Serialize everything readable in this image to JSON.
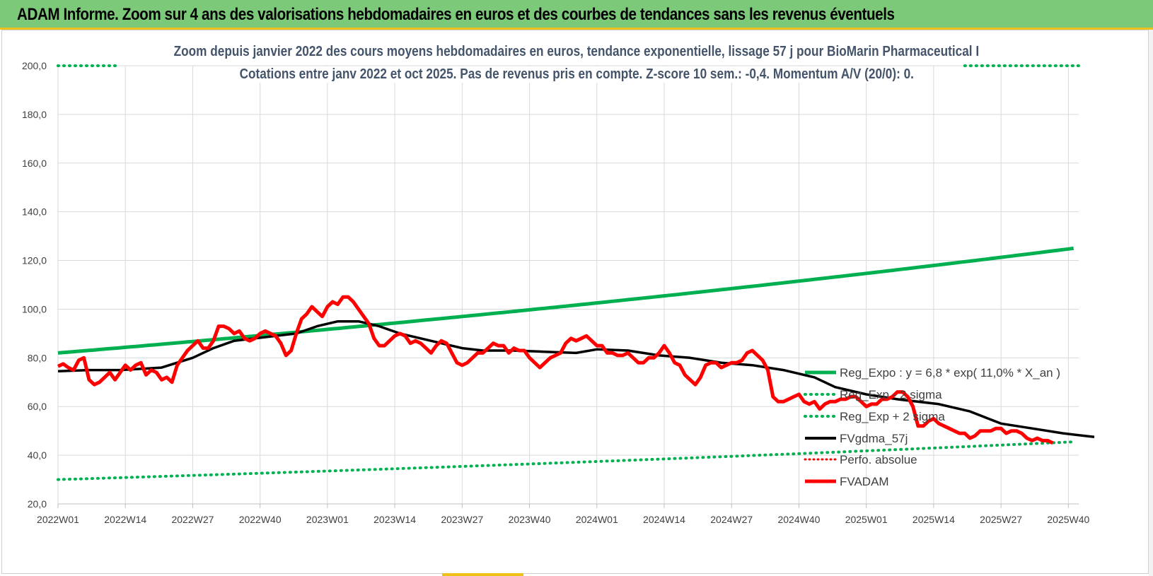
{
  "header": {
    "title": "ADAM Informe. Zoom sur 4 ans des valorisations hebdomadaires en euros et des courbes de tendances sans les revenus éventuels"
  },
  "chart_data": {
    "type": "line",
    "title_line1": "Zoom depuis janvier 2022 des cours moyens hebdomadaires en euros, tendance exponentielle, lissage 57 j pour BioMarin Pharmaceutical I",
    "title_line2": "Cotations entre janv 2022 et oct 2025. Pas de revenus pris en compte. Z-score 10 sem.: -0,4.  Momentum A/V (20/0): 0.",
    "ylim": [
      20,
      200
    ],
    "y_ticks": [
      20,
      40,
      60,
      80,
      100,
      120,
      140,
      160,
      180,
      200
    ],
    "y_tick_labels": [
      "20,0",
      "40,0",
      "60,0",
      "80,0",
      "100,0",
      "120,0",
      "140,0",
      "160,0",
      "180,0",
      "200,0"
    ],
    "n_weeks": 197,
    "x_ticks": [
      0,
      13,
      26,
      39,
      52,
      65,
      78,
      91,
      104,
      117,
      130,
      143,
      156,
      169,
      182,
      195
    ],
    "x_tick_labels": [
      "2022W01",
      "2022W14",
      "2022W27",
      "2022W40",
      "2023W01",
      "2023W14",
      "2023W27",
      "2023W40",
      "2024W01",
      "2024W14",
      "2024W27",
      "2024W40",
      "2025W01",
      "2025W14",
      "2025W27",
      "2025W40"
    ],
    "grid": true,
    "legend_position": "right",
    "series": [
      {
        "name": "Reg_Expo : y = 6,8 * exp( 11,0% * X_an )",
        "color": "#00b050",
        "style": "solid",
        "start": 82.0,
        "end": 125.0
      },
      {
        "name": "Reg_Exp - 2 sigma",
        "color": "#00b050",
        "style": "dotted",
        "start": 30.0,
        "end": 45.5
      },
      {
        "name": "Reg_Exp + 2 sigma",
        "color": "#00b050",
        "style": "dotted",
        "note": "above plotted range except first and last weeks",
        "start": 200.0,
        "end": 200.0
      },
      {
        "name": "FVgdma_57j",
        "color": "#000000",
        "style": "solid",
        "points": [
          [
            0,
            74.5
          ],
          [
            6,
            75
          ],
          [
            12,
            75
          ],
          [
            20,
            76
          ],
          [
            26,
            80
          ],
          [
            30,
            84
          ],
          [
            34,
            87
          ],
          [
            38,
            88
          ],
          [
            42,
            89
          ],
          [
            46,
            90
          ],
          [
            50,
            93
          ],
          [
            54,
            95
          ],
          [
            58,
            95
          ],
          [
            62,
            93
          ],
          [
            66,
            90
          ],
          [
            70,
            88
          ],
          [
            74,
            86
          ],
          [
            78,
            84
          ],
          [
            82,
            83
          ],
          [
            88,
            83
          ],
          [
            94,
            82.5
          ],
          [
            100,
            82
          ],
          [
            104,
            83.5
          ],
          [
            110,
            83
          ],
          [
            116,
            81
          ],
          [
            122,
            80
          ],
          [
            128,
            78
          ],
          [
            134,
            77
          ],
          [
            140,
            75
          ],
          [
            146,
            72
          ],
          [
            150,
            68
          ],
          [
            156,
            65
          ],
          [
            162,
            63
          ],
          [
            170,
            61
          ],
          [
            176,
            58
          ],
          [
            182,
            53
          ],
          [
            188,
            51
          ],
          [
            194,
            49
          ],
          [
            200,
            47.5
          ]
        ]
      },
      {
        "name": "Perfo. absolue",
        "color": "#ff0000",
        "style": "dotted",
        "note": "not visible in plotted range"
      },
      {
        "name": "FVADAM",
        "color": "#ff0000",
        "style": "solid",
        "points": [
          [
            0,
            76.5
          ],
          [
            1,
            77.5
          ],
          [
            2,
            76
          ],
          [
            3,
            75
          ],
          [
            4,
            79
          ],
          [
            5,
            80
          ],
          [
            6,
            71
          ],
          [
            7,
            69
          ],
          [
            8,
            70
          ],
          [
            9,
            72
          ],
          [
            10,
            74
          ],
          [
            11,
            71
          ],
          [
            12,
            74
          ],
          [
            13,
            77
          ],
          [
            14,
            75
          ],
          [
            15,
            77
          ],
          [
            16,
            78
          ],
          [
            17,
            73
          ],
          [
            18,
            75
          ],
          [
            19,
            74
          ],
          [
            20,
            71
          ],
          [
            21,
            72
          ],
          [
            22,
            70
          ],
          [
            23,
            77
          ],
          [
            24,
            80
          ],
          [
            25,
            83
          ],
          [
            26,
            85
          ],
          [
            27,
            87
          ],
          [
            28,
            84
          ],
          [
            29,
            84
          ],
          [
            30,
            87
          ],
          [
            31,
            93
          ],
          [
            32,
            93
          ],
          [
            33,
            92
          ],
          [
            34,
            90
          ],
          [
            35,
            91
          ],
          [
            36,
            88
          ],
          [
            37,
            87
          ],
          [
            38,
            88
          ],
          [
            39,
            90
          ],
          [
            40,
            91
          ],
          [
            41,
            90
          ],
          [
            42,
            89
          ],
          [
            43,
            86
          ],
          [
            44,
            81
          ],
          [
            45,
            83
          ],
          [
            46,
            90
          ],
          [
            47,
            96
          ],
          [
            48,
            98
          ],
          [
            49,
            101
          ],
          [
            50,
            99
          ],
          [
            51,
            97
          ],
          [
            52,
            101
          ],
          [
            53,
            103
          ],
          [
            54,
            102
          ],
          [
            55,
            105
          ],
          [
            56,
            105
          ],
          [
            57,
            103
          ],
          [
            58,
            100
          ],
          [
            59,
            97
          ],
          [
            60,
            94
          ],
          [
            61,
            88
          ],
          [
            62,
            85
          ],
          [
            63,
            85
          ],
          [
            64,
            87
          ],
          [
            65,
            89
          ],
          [
            66,
            90
          ],
          [
            67,
            89
          ],
          [
            68,
            86
          ],
          [
            69,
            87
          ],
          [
            70,
            86
          ],
          [
            71,
            84
          ],
          [
            72,
            82
          ],
          [
            73,
            85
          ],
          [
            74,
            87
          ],
          [
            75,
            86
          ],
          [
            76,
            82
          ],
          [
            77,
            78
          ],
          [
            78,
            77
          ],
          [
            79,
            78
          ],
          [
            80,
            80
          ],
          [
            81,
            82
          ],
          [
            82,
            82
          ],
          [
            83,
            84
          ],
          [
            84,
            86
          ],
          [
            85,
            85
          ],
          [
            86,
            85
          ],
          [
            87,
            82
          ],
          [
            88,
            84
          ],
          [
            89,
            83
          ],
          [
            90,
            83
          ],
          [
            91,
            80
          ],
          [
            92,
            78
          ],
          [
            93,
            76
          ],
          [
            94,
            78
          ],
          [
            95,
            80
          ],
          [
            96,
            81
          ],
          [
            97,
            82
          ],
          [
            98,
            86
          ],
          [
            99,
            88
          ],
          [
            100,
            87
          ],
          [
            101,
            88
          ],
          [
            102,
            89
          ],
          [
            103,
            87
          ],
          [
            104,
            85
          ],
          [
            105,
            85
          ],
          [
            106,
            82
          ],
          [
            107,
            82
          ],
          [
            108,
            81
          ],
          [
            109,
            81
          ],
          [
            110,
            82
          ],
          [
            111,
            80
          ],
          [
            112,
            78
          ],
          [
            113,
            78
          ],
          [
            114,
            80
          ],
          [
            115,
            80
          ],
          [
            116,
            82
          ],
          [
            117,
            85
          ],
          [
            118,
            82
          ],
          [
            119,
            78
          ],
          [
            120,
            77
          ],
          [
            121,
            73
          ],
          [
            122,
            71
          ],
          [
            123,
            69
          ],
          [
            124,
            72
          ],
          [
            125,
            77
          ],
          [
            126,
            78
          ],
          [
            127,
            78
          ],
          [
            128,
            76
          ],
          [
            129,
            77
          ],
          [
            130,
            78
          ],
          [
            131,
            78
          ],
          [
            132,
            79
          ],
          [
            133,
            82
          ],
          [
            134,
            83
          ],
          [
            135,
            81
          ],
          [
            136,
            79
          ],
          [
            137,
            75
          ],
          [
            138,
            64
          ],
          [
            139,
            62
          ],
          [
            140,
            62
          ],
          [
            141,
            63
          ],
          [
            142,
            64
          ],
          [
            143,
            65
          ],
          [
            144,
            62
          ],
          [
            145,
            61
          ],
          [
            146,
            62
          ],
          [
            147,
            59
          ],
          [
            148,
            61
          ],
          [
            149,
            62
          ],
          [
            150,
            62
          ],
          [
            151,
            63
          ],
          [
            152,
            63
          ],
          [
            153,
            64
          ],
          [
            154,
            64
          ],
          [
            155,
            62
          ],
          [
            156,
            60
          ],
          [
            157,
            61
          ],
          [
            158,
            61
          ],
          [
            159,
            63
          ],
          [
            160,
            63
          ],
          [
            161,
            64
          ],
          [
            162,
            66
          ],
          [
            163,
            66
          ],
          [
            164,
            64
          ],
          [
            165,
            60
          ],
          [
            166,
            52
          ],
          [
            167,
            52
          ],
          [
            168,
            54
          ],
          [
            169,
            55
          ],
          [
            170,
            53
          ],
          [
            171,
            52
          ],
          [
            172,
            51
          ],
          [
            173,
            50
          ],
          [
            174,
            49
          ],
          [
            175,
            49
          ],
          [
            176,
            47
          ],
          [
            177,
            48
          ],
          [
            178,
            50
          ],
          [
            179,
            50
          ],
          [
            180,
            50
          ],
          [
            181,
            51
          ],
          [
            182,
            51
          ],
          [
            183,
            49
          ],
          [
            184,
            50
          ],
          [
            185,
            50
          ],
          [
            186,
            49
          ],
          [
            187,
            47
          ],
          [
            188,
            46
          ],
          [
            189,
            47
          ],
          [
            190,
            46
          ],
          [
            191,
            46
          ],
          [
            192,
            45
          ]
        ]
      }
    ]
  }
}
